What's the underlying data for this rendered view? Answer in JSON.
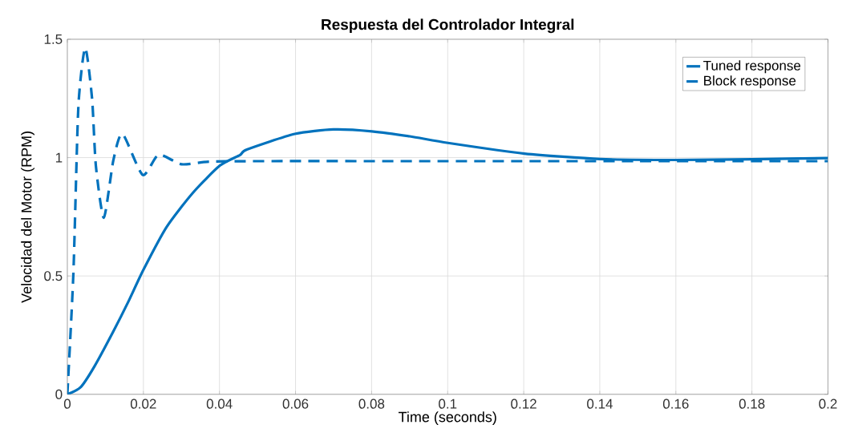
{
  "chart_data": {
    "type": "line",
    "title": "**Respuesta del Controlador Integral**",
    "xlabel": "Time (seconds)",
    "ylabel": "Velocidad del Motor (RPM)",
    "xlim": [
      0,
      0.2
    ],
    "ylim": [
      0,
      1.5
    ],
    "xticks": [
      0,
      0.02,
      0.04,
      0.06,
      0.08,
      0.1,
      0.12,
      0.14,
      0.16,
      0.18,
      0.2
    ],
    "yticks": [
      0,
      0.5,
      1,
      1.5
    ],
    "grid": true,
    "legend": "top right",
    "series": [
      {
        "name": "Tuned response",
        "color": "#0072bd",
        "line_style": "solid",
        "x": [
          0,
          0.0035,
          0.0072,
          0.0121,
          0.016,
          0.02,
          0.0261,
          0.0331,
          0.0401,
          0.0454,
          0.0472,
          0.0598,
          0.07,
          0.0801,
          0.09,
          0.1001,
          0.1202,
          0.1402,
          0.16,
          0.18,
          0.2
        ],
        "values": [
          0,
          0.03,
          0.12,
          0.266,
          0.39,
          0.526,
          0.707,
          0.853,
          0.966,
          1.011,
          1.034,
          1.1,
          1.119,
          1.111,
          1.09,
          1.062,
          1.017,
          0.994,
          0.99,
          0.993,
          0.998
        ]
      },
      {
        "name": "Block response",
        "color": "#0072bd",
        "line_style": "dashed",
        "x": [
          0,
          0.0016,
          0.0029,
          0.0047,
          0.0065,
          0.0075,
          0.0096,
          0.0121,
          0.0145,
          0.0198,
          0.024,
          0.03,
          0.0373,
          0.05,
          0.1,
          0.15,
          0.2
        ],
        "values": [
          0,
          0.515,
          1.215,
          1.463,
          1.25,
          0.966,
          0.746,
          0.989,
          1.1,
          0.927,
          1.012,
          0.972,
          0.983,
          0.985,
          0.985,
          0.985,
          0.985
        ]
      }
    ]
  }
}
